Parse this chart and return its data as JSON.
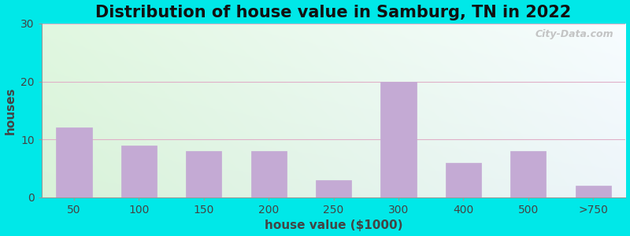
{
  "title": "Distribution of house value in Samburg, TN in 2022",
  "xlabel": "house value ($1000)",
  "ylabel": "houses",
  "categories": [
    "50",
    "100",
    "150",
    "200",
    "250",
    "300",
    "400",
    "500",
    ">750"
  ],
  "values": [
    12,
    9,
    8,
    8,
    3,
    20,
    6,
    8,
    2
  ],
  "bar_color": "#c4aad4",
  "bar_edgecolor": "#c4aad4",
  "ylim": [
    0,
    30
  ],
  "yticks": [
    0,
    10,
    20,
    30
  ],
  "background_outer": "#00e8e8",
  "grid_color": "#e0b0c8",
  "title_fontsize": 15,
  "axis_fontsize": 11,
  "tick_fontsize": 10,
  "watermark_text": "City-Data.com",
  "bg_colors_corners": [
    "#d0f0d8",
    "#e8f8f0",
    "#ffffff",
    "#e8f0f8"
  ],
  "bar_width": 0.55
}
